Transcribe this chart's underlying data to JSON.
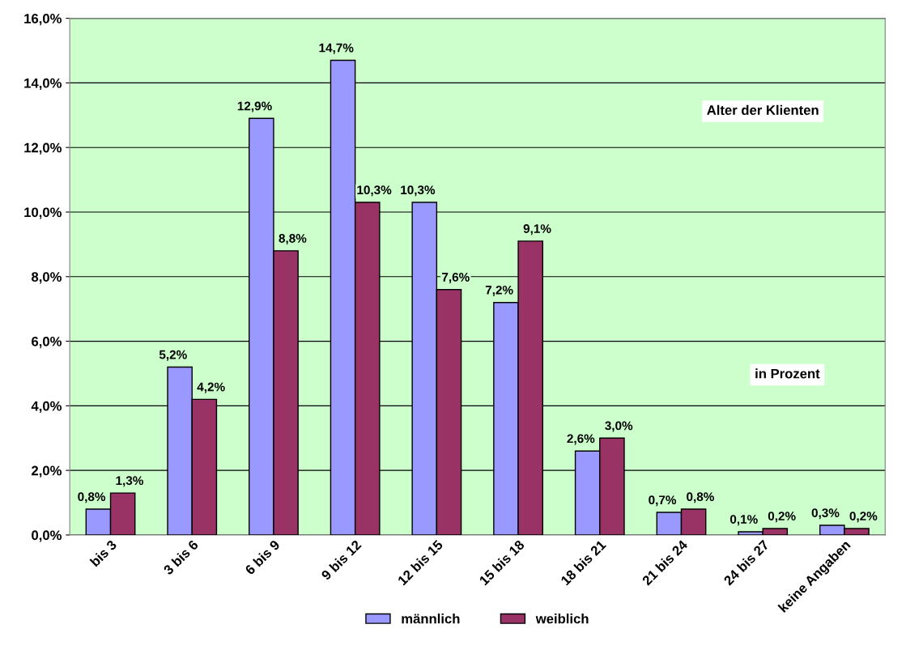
{
  "chart_data": {
    "type": "bar",
    "categories": [
      "bis 3",
      "3 bis 6",
      "6 bis 9",
      "9 bis 12",
      "12 bis 15",
      "15 bis 18",
      "18 bis 21",
      "21 bis 24",
      "24 bis 27",
      "keine Angaben"
    ],
    "series": [
      {
        "name": "männlich",
        "color": "#9999ff",
        "values": [
          0.8,
          5.2,
          12.9,
          14.7,
          10.3,
          7.2,
          2.6,
          0.7,
          0.1,
          0.3
        ],
        "value_labels": [
          "0,8%",
          "5,2%",
          "12,9%",
          "14,7%",
          "10,3%",
          "7,2%",
          "2,6%",
          "0,7%",
          "0,1%",
          "0,3%"
        ]
      },
      {
        "name": "weiblich",
        "color": "#993366",
        "values": [
          1.3,
          4.2,
          8.8,
          10.3,
          7.6,
          9.1,
          3.0,
          0.8,
          0.2,
          0.2
        ],
        "value_labels": [
          "1,3%",
          "4,2%",
          "8,8%",
          "10,3%",
          "7,6%",
          "9,1%",
          "3,0%",
          "0,8%",
          "0,2%",
          "0,2%"
        ]
      }
    ],
    "ylim": [
      0,
      16
    ],
    "yticks": [
      {
        "value": 0,
        "label": "0,0%"
      },
      {
        "value": 2,
        "label": "2,0%"
      },
      {
        "value": 4,
        "label": "4,0%"
      },
      {
        "value": 6,
        "label": "6,0%"
      },
      {
        "value": 8,
        "label": "8,0%"
      },
      {
        "value": 10,
        "label": "10,0%"
      },
      {
        "value": 12,
        "label": "12,0%"
      },
      {
        "value": 14,
        "label": "14,0%"
      },
      {
        "value": 16,
        "label": "16,0%"
      }
    ],
    "grid": "y",
    "legend": "bottom",
    "annotations": [
      "Alter der Klienten",
      "in Prozent"
    ]
  }
}
